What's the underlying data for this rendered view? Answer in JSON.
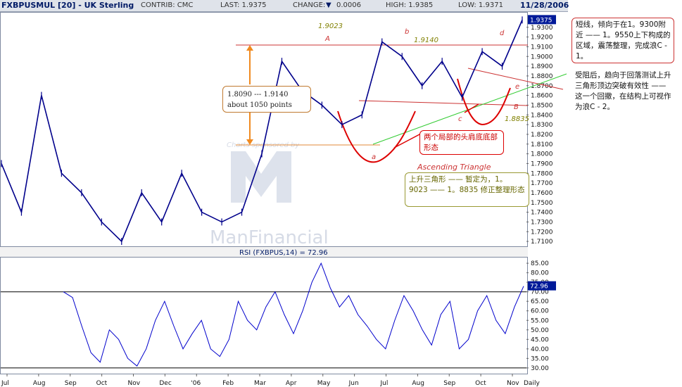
{
  "header": {
    "symbol": "FXBPUSMUL [20] - UK Sterling",
    "contrib": "CONTRIB: CMC",
    "last": "LAST: 1.9375",
    "change_label": "CHANGE:",
    "change_value": "0.0006",
    "high": "HIGH: 1.9385",
    "low": "LOW: 1.9371",
    "date": "11/28/2006"
  },
  "watermark": {
    "sponsor": "Charts sponsored by",
    "brand": "ManFinancial"
  },
  "chart_data": [
    {
      "type": "line",
      "title": "",
      "x_ticks": [
        "Jul",
        "Aug",
        "Sep",
        "Oct",
        "Nov",
        "Dec",
        "'06",
        "Feb",
        "Mar",
        "Apr",
        "May",
        "Jun",
        "Jul",
        "Aug",
        "Sep",
        "Oct",
        "Nov",
        "Daily"
      ],
      "y_ticks": [
        "1.9300",
        "1.9200",
        "1.9100",
        "1.9000",
        "1.8900",
        "1.8800",
        "1.8700",
        "1.8600",
        "1.8500",
        "1.8400",
        "1.8300",
        "1.8200",
        "1.8100",
        "1.8000",
        "1.7900",
        "1.7800",
        "1.7700",
        "1.7600",
        "1.7500",
        "1.7400",
        "1.7300",
        "1.7200",
        "1.7100"
      ],
      "ylim": [
        1.705,
        1.945
      ],
      "last_value": "1.9375",
      "series": [
        {
          "x": [
            "Jul",
            "Aug",
            "Sep",
            "Sep",
            "Oct",
            "Nov",
            "Nov",
            "Dec",
            "'06",
            "Feb",
            "Mar",
            "Mar",
            "Apr",
            "Apr",
            "May",
            "May",
            "Jun",
            "Jun",
            "Jul",
            "Aug",
            "Aug",
            "Sep",
            "Oct",
            "Oct",
            "Nov",
            "Nov",
            "Nov"
          ],
          "values": [
            1.79,
            1.74,
            1.86,
            1.78,
            1.76,
            1.73,
            1.71,
            1.76,
            1.73,
            1.78,
            1.74,
            1.73,
            1.74,
            1.8,
            1.895,
            1.865,
            1.85,
            1.83,
            1.84,
            1.915,
            1.9,
            1.87,
            1.895,
            1.858,
            1.905,
            1.89,
            1.9375
          ]
        }
      ],
      "annotations": {
        "A": "A",
        "b": "b",
        "d": "d",
        "a": "a",
        "c": "c",
        "e": "e",
        "B": "B",
        "v1": "1.9023",
        "v2": "1.9140",
        "v3": "1.8835",
        "range_line1": "1.8090 --- 1.9140",
        "range_line2": "about  1050 points",
        "triangle_title": "Ascending Triangle"
      }
    },
    {
      "type": "line",
      "title": "RSI (FXBPUS,14) = 72.96",
      "y_ticks": [
        "85.00",
        "80.00",
        "75.00",
        "70.00",
        "65.00",
        "60.00",
        "55.00",
        "50.00",
        "45.00",
        "40.00",
        "35.00",
        "30.00"
      ],
      "ylim": [
        27,
        88
      ],
      "reference_lines": [
        70,
        30
      ],
      "last_value": "72.96",
      "series": [
        {
          "values": [
            70,
            67,
            52,
            38,
            33,
            50,
            45,
            35,
            31,
            40,
            55,
            65,
            52,
            40,
            48,
            55,
            40,
            36,
            45,
            65,
            55,
            50,
            62,
            70,
            58,
            48,
            60,
            75,
            85,
            72,
            62,
            68,
            58,
            52,
            45,
            40,
            55,
            68,
            60,
            50,
            42,
            58,
            65,
            40,
            45,
            60,
            68,
            55,
            48,
            62,
            72.96
          ]
        }
      ]
    }
  ],
  "notes": {
    "note1": "短线，倾向于在1。9300附近 —— 1。9550上下构成的区域，震荡整理，完成浪C - 1。",
    "note2": "受阻后，趋向于回落测试上升三角形顶边突破有效性 —— 这一个回撤，在结构上可视作为浪C - 2。",
    "hs_label": "两个局部的头肩底底部形态",
    "tri_note": "上升三角形 —— 暂定为，1。9023 —— 1。8835 修正整理形态"
  }
}
